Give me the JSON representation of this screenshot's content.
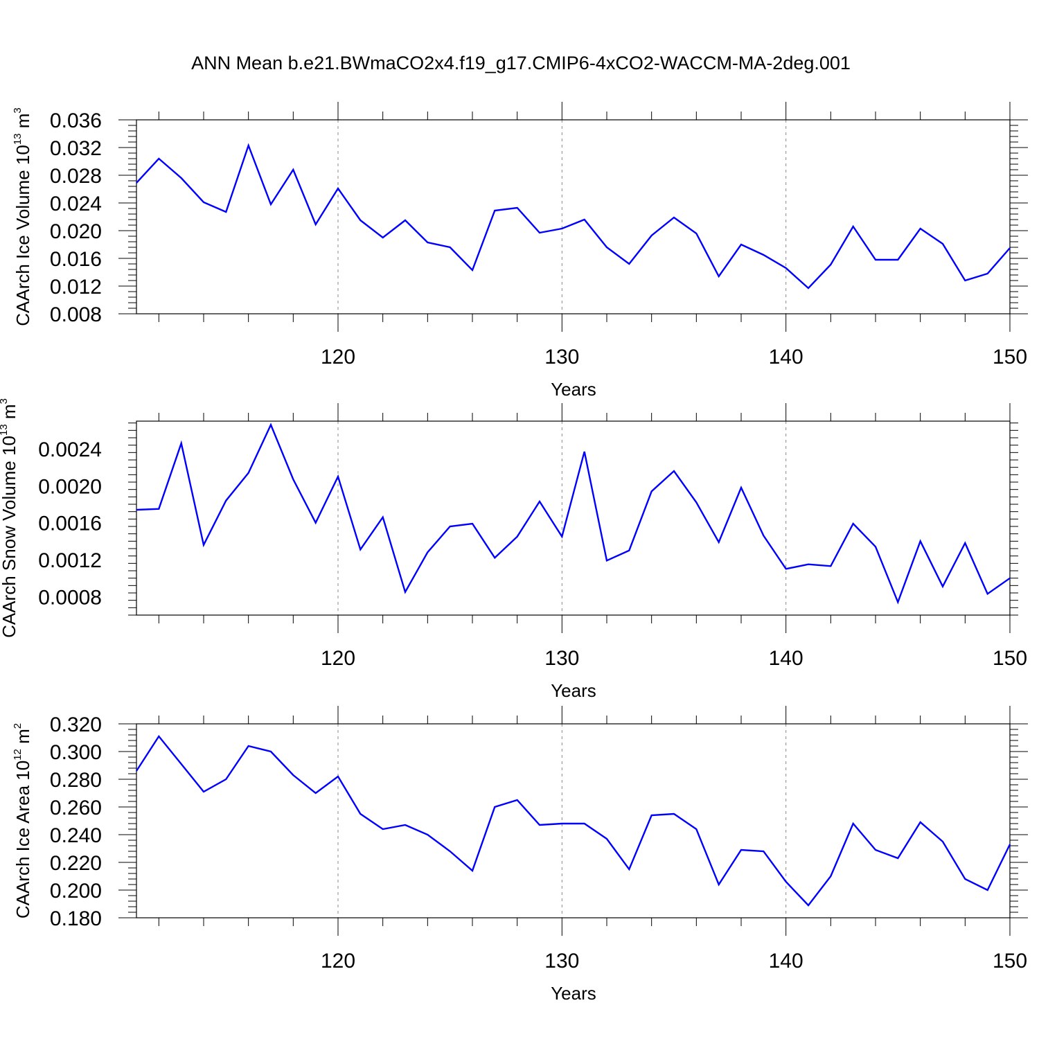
{
  "title": "ANN Mean b.e21.BWmaCO2x4.f19_g17.CMIP6-4xCO2-WACCM-MA-2deg.001",
  "chart_data": [
    {
      "type": "line",
      "title": "",
      "xlabel": "Years",
      "ylabel": {
        "base": "CAArch Ice Volume 10",
        "exp": "13",
        "unit": " m",
        "unit_exp": "3"
      },
      "xlim": [
        111,
        150
      ],
      "ylim": [
        0.008,
        0.036
      ],
      "xticks": [
        "120",
        "130",
        "140",
        "150"
      ],
      "yticks": [
        "0.008",
        "0.012",
        "0.016",
        "0.020",
        "0.024",
        "0.028",
        "0.032",
        "0.036"
      ],
      "line_color": "#0000ff",
      "x": [
        111,
        112,
        113,
        114,
        115,
        116,
        117,
        118,
        119,
        120,
        121,
        122,
        123,
        124,
        125,
        126,
        127,
        128,
        129,
        130,
        131,
        132,
        133,
        134,
        135,
        136,
        137,
        138,
        139,
        140,
        141,
        142,
        143,
        144,
        145,
        146,
        147,
        148,
        149,
        150
      ],
      "values": [
        0.0269,
        0.0304,
        0.0276,
        0.0241,
        0.0227,
        0.0323,
        0.0238,
        0.0288,
        0.0209,
        0.0261,
        0.0215,
        0.019,
        0.0215,
        0.0183,
        0.0176,
        0.0143,
        0.0229,
        0.0233,
        0.0197,
        0.0203,
        0.0216,
        0.0176,
        0.0152,
        0.0193,
        0.0219,
        0.0196,
        0.0134,
        0.018,
        0.0165,
        0.0146,
        0.0117,
        0.0151,
        0.0206,
        0.0158,
        0.0158,
        0.0203,
        0.0181,
        0.0128,
        0.0138,
        0.0175
      ]
    },
    {
      "type": "line",
      "title": "",
      "xlabel": "Years",
      "ylabel": {
        "base": "CAArch Snow Volume 10",
        "exp": "13",
        "unit": " m",
        "unit_exp": "3"
      },
      "xlim": [
        111,
        150
      ],
      "ylim": [
        0.0006,
        0.0027
      ],
      "xticks": [
        "120",
        "130",
        "140",
        "150"
      ],
      "yticks": [
        "0.0008",
        "0.0012",
        "0.0016",
        "0.0020",
        "0.0024"
      ],
      "line_color": "#0000ff",
      "x": [
        111,
        112,
        113,
        114,
        115,
        116,
        117,
        118,
        119,
        120,
        121,
        122,
        123,
        124,
        125,
        126,
        127,
        128,
        129,
        130,
        131,
        132,
        133,
        134,
        135,
        136,
        137,
        138,
        139,
        140,
        141,
        142,
        143,
        144,
        145,
        146,
        147,
        148,
        149,
        150
      ],
      "values": [
        0.00174,
        0.00175,
        0.00246,
        0.00136,
        0.00184,
        0.00214,
        0.00266,
        0.00207,
        0.0016,
        0.0021,
        0.00131,
        0.00166,
        0.00085,
        0.00128,
        0.00156,
        0.00159,
        0.00122,
        0.00145,
        0.00183,
        0.00145,
        0.00237,
        0.00119,
        0.0013,
        0.00194,
        0.00216,
        0.00182,
        0.00139,
        0.00198,
        0.00146,
        0.0011,
        0.00115,
        0.00113,
        0.00159,
        0.00134,
        0.00074,
        0.0014,
        0.00091,
        0.00138,
        0.00083,
        0.001
      ]
    },
    {
      "type": "line",
      "title": "",
      "xlabel": "Years",
      "ylabel": {
        "base": "CAArch Ice Area 10",
        "exp": "12",
        "unit": " m",
        "unit_exp": "2"
      },
      "xlim": [
        111,
        150
      ],
      "ylim": [
        0.18,
        0.32
      ],
      "xticks": [
        "120",
        "130",
        "140",
        "150"
      ],
      "yticks": [
        "0.180",
        "0.200",
        "0.220",
        "0.240",
        "0.260",
        "0.280",
        "0.300",
        "0.320"
      ],
      "line_color": "#0000ff",
      "x": [
        111,
        112,
        113,
        114,
        115,
        116,
        117,
        118,
        119,
        120,
        121,
        122,
        123,
        124,
        125,
        126,
        127,
        128,
        129,
        130,
        131,
        132,
        133,
        134,
        135,
        136,
        137,
        138,
        139,
        140,
        141,
        142,
        143,
        144,
        145,
        146,
        147,
        148,
        149,
        150
      ],
      "values": [
        0.286,
        0.311,
        0.291,
        0.271,
        0.28,
        0.304,
        0.3,
        0.283,
        0.27,
        0.282,
        0.255,
        0.244,
        0.247,
        0.24,
        0.228,
        0.214,
        0.26,
        0.265,
        0.247,
        0.248,
        0.248,
        0.237,
        0.215,
        0.254,
        0.255,
        0.244,
        0.204,
        0.229,
        0.228,
        0.206,
        0.189,
        0.21,
        0.248,
        0.229,
        0.223,
        0.249,
        0.235,
        0.208,
        0.2,
        0.233
      ]
    }
  ]
}
